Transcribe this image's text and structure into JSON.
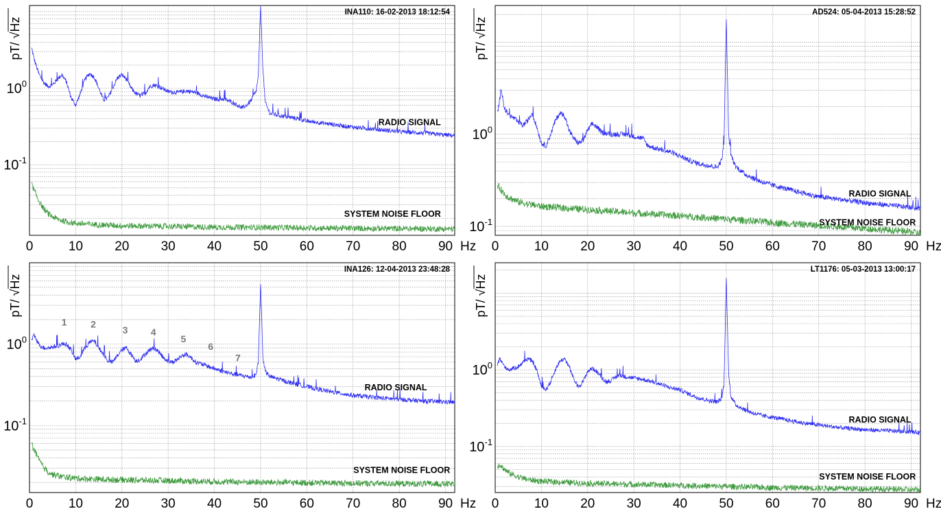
{
  "chart_data": [
    {
      "type": "line",
      "stamp": "INA110:   16-02-2013    18:12:54",
      "ylabel": "pT/ √Hz",
      "x_unit": "Hz",
      "xlim": [
        0,
        92
      ],
      "ylim": [
        0.012,
        12
      ],
      "y_scale": "log",
      "x_ticks": [
        "0",
        "10",
        "20",
        "30",
        "40",
        "50",
        "60",
        "70",
        "80",
        "90"
      ],
      "y_ticks": [
        {
          "base": "10",
          "exp": "0",
          "value": 1
        },
        {
          "base": "10",
          "exp": "-1",
          "value": 0.1
        }
      ],
      "grid": true,
      "annotations": [
        {
          "text": "RADIO SIGNAL",
          "x": 89,
          "y": 0.33
        },
        {
          "text": "SYSTEM  NOISE  FLOOR",
          "x": 89,
          "y": 0.021
        }
      ],
      "peak_labels": [],
      "series": [
        {
          "name": "RADIO SIGNAL",
          "color": "#2c2cf0",
          "x": [
            0.5,
            1,
            2,
            3,
            4,
            5,
            6,
            7,
            8,
            9,
            10,
            11,
            12,
            13,
            14,
            15,
            16,
            17,
            18,
            19,
            20,
            21,
            22,
            23,
            24,
            25,
            26,
            27,
            28,
            30,
            32,
            34,
            36,
            38,
            40,
            42,
            44,
            46,
            47,
            48,
            49,
            49.5,
            50,
            50.5,
            51,
            52,
            54,
            56,
            58,
            60,
            62,
            65,
            70,
            75,
            80,
            85,
            90,
            93
          ],
          "y": [
            3.3,
            2.4,
            1.55,
            1.2,
            1.05,
            1.1,
            1.3,
            1.5,
            1.2,
            0.75,
            0.6,
            0.85,
            1.3,
            1.55,
            1.4,
            1.0,
            0.7,
            0.75,
            1.0,
            1.35,
            1.5,
            1.3,
            1.0,
            0.85,
            0.8,
            0.85,
            1.05,
            1.1,
            1.05,
            0.9,
            0.88,
            0.92,
            0.88,
            0.78,
            0.72,
            0.72,
            0.65,
            0.55,
            0.6,
            0.7,
            0.9,
            1.4,
            12,
            1.8,
            0.65,
            0.47,
            0.44,
            0.42,
            0.4,
            0.37,
            0.36,
            0.34,
            0.31,
            0.29,
            0.27,
            0.26,
            0.245,
            0.24
          ]
        },
        {
          "name": "SYSTEM  NOISE  FLOOR",
          "color": "#3e9a3e",
          "x": [
            0.5,
            1,
            2,
            3,
            4,
            5,
            6,
            8,
            10,
            15,
            20,
            30,
            40,
            50,
            60,
            70,
            80,
            93
          ],
          "y": [
            0.055,
            0.046,
            0.034,
            0.027,
            0.023,
            0.021,
            0.0195,
            0.018,
            0.0172,
            0.0165,
            0.016,
            0.0157,
            0.0153,
            0.0152,
            0.015,
            0.0148,
            0.0147,
            0.0145
          ]
        }
      ]
    },
    {
      "type": "line",
      "stamp": "AD524:  05-04-2013    15:28:52",
      "ylabel": "pT/ √Hz",
      "x_unit": "Hz",
      "xlim": [
        0,
        92
      ],
      "ylim": [
        0.08,
        25
      ],
      "y_scale": "log",
      "x_ticks": [
        "0",
        "10",
        "20",
        "30",
        "40",
        "50",
        "60",
        "70",
        "80",
        "90"
      ],
      "y_ticks": [
        {
          "base": "10",
          "exp": "0",
          "value": 1
        },
        {
          "base": "10",
          "exp": "-1",
          "value": 0.1
        }
      ],
      "grid": true,
      "annotations": [
        {
          "text": "RADIO SIGNAL",
          "x": 90,
          "y": 0.21
        },
        {
          "text": "SYSTEM  NOISE  FLOOR",
          "x": 91,
          "y": 0.103
        }
      ],
      "peak_labels": [],
      "series": [
        {
          "name": "RADIO SIGNAL",
          "color": "#2c2cf0",
          "x": [
            0.5,
            1,
            1.3,
            2,
            3,
            4,
            5,
            6,
            7,
            8,
            9,
            10,
            11,
            12,
            13,
            14,
            15,
            16,
            17,
            18,
            19,
            20,
            21,
            22,
            23,
            25,
            28,
            30,
            32,
            33,
            35,
            38,
            40,
            42,
            44,
            46,
            48,
            49,
            49.5,
            50,
            50.5,
            51,
            52,
            54,
            56,
            58,
            60,
            65,
            70,
            75,
            80,
            85,
            90,
            93
          ],
          "y": [
            1.7,
            2.4,
            3.2,
            1.9,
            1.6,
            1.5,
            1.35,
            1.25,
            1.4,
            1.7,
            1.2,
            0.8,
            0.75,
            1.0,
            1.4,
            1.7,
            1.6,
            1.1,
            0.9,
            0.8,
            0.85,
            1.1,
            1.3,
            1.2,
            1.05,
            1.0,
            1.0,
            0.95,
            0.9,
            0.75,
            0.7,
            0.64,
            0.58,
            0.52,
            0.48,
            0.46,
            0.44,
            0.52,
            0.8,
            18,
            1.0,
            0.6,
            0.45,
            0.37,
            0.33,
            0.3,
            0.28,
            0.24,
            0.21,
            0.195,
            0.18,
            0.17,
            0.16,
            0.155
          ]
        },
        {
          "name": "SYSTEM  NOISE  FLOOR",
          "color": "#3e9a3e",
          "x": [
            0.5,
            1,
            2,
            3,
            5,
            7,
            10,
            15,
            20,
            30,
            40,
            50,
            60,
            70,
            80,
            90,
            93
          ],
          "y": [
            0.28,
            0.26,
            0.225,
            0.205,
            0.185,
            0.175,
            0.165,
            0.158,
            0.152,
            0.14,
            0.13,
            0.12,
            0.11,
            0.102,
            0.095,
            0.087,
            0.083
          ]
        }
      ]
    },
    {
      "type": "line",
      "stamp": "INA126:   12-04-2013    23:48:28",
      "ylabel": "pT/ √Hz",
      "x_unit": "Hz",
      "xlim": [
        0,
        92
      ],
      "ylim": [
        0.015,
        10
      ],
      "y_scale": "log",
      "x_ticks": [
        "0",
        "10",
        "20",
        "30",
        "40",
        "50",
        "60",
        "70",
        "80",
        "90"
      ],
      "y_ticks": [
        {
          "base": "10",
          "exp": "0",
          "value": 1
        },
        {
          "base": "10",
          "exp": "-1",
          "value": 0.1
        }
      ],
      "grid": true,
      "annotations": [
        {
          "text": "RADIO SIGNAL",
          "x": 86,
          "y": 0.27
        },
        {
          "text": "SYSTEM  NOISE  FLOOR",
          "x": 91,
          "y": 0.026
        }
      ],
      "peak_labels": [
        {
          "text": "1",
          "x": 7.5,
          "y": 1.7
        },
        {
          "text": "2",
          "x": 13.8,
          "y": 1.6
        },
        {
          "text": "3",
          "x": 20.7,
          "y": 1.35
        },
        {
          "text": "4",
          "x": 26.8,
          "y": 1.28
        },
        {
          "text": "5",
          "x": 33.3,
          "y": 1.05
        },
        {
          "text": "6",
          "x": 39.2,
          "y": 0.85
        },
        {
          "text": "7",
          "x": 45.1,
          "y": 0.62
        }
      ],
      "series": [
        {
          "name": "RADIO SIGNAL",
          "color": "#2c2cf0",
          "x": [
            0.5,
            1,
            2,
            3,
            4,
            5,
            6,
            7,
            8,
            9,
            10,
            11,
            12,
            13,
            14,
            15,
            16,
            17,
            18,
            19,
            20,
            21,
            22,
            23,
            24,
            25,
            26,
            27,
            28,
            29,
            30,
            31,
            32,
            33,
            34,
            35,
            36,
            38,
            40,
            42,
            44,
            46,
            48,
            49,
            49.5,
            50,
            50.5,
            51,
            52,
            54,
            56,
            58,
            60,
            65,
            70,
            75,
            80,
            85,
            90,
            93
          ],
          "y": [
            1.1,
            1.3,
            1.0,
            0.9,
            0.9,
            0.92,
            0.95,
            1.0,
            1.0,
            0.85,
            0.65,
            0.7,
            0.9,
            1.05,
            1.1,
            0.9,
            0.75,
            0.62,
            0.6,
            0.72,
            0.85,
            0.9,
            0.75,
            0.62,
            0.65,
            0.75,
            0.85,
            0.9,
            0.8,
            0.68,
            0.62,
            0.6,
            0.65,
            0.72,
            0.75,
            0.68,
            0.6,
            0.55,
            0.5,
            0.46,
            0.43,
            0.41,
            0.39,
            0.42,
            0.6,
            5.5,
            0.7,
            0.46,
            0.4,
            0.37,
            0.34,
            0.32,
            0.3,
            0.26,
            0.235,
            0.22,
            0.21,
            0.2,
            0.195,
            0.19
          ]
        },
        {
          "name": "SYSTEM  NOISE  FLOOR",
          "color": "#3e9a3e",
          "x": [
            0.5,
            1,
            2,
            3,
            4,
            5,
            7,
            10,
            15,
            20,
            30,
            40,
            50,
            60,
            70,
            80,
            93
          ],
          "y": [
            0.06,
            0.05,
            0.038,
            0.031,
            0.027,
            0.025,
            0.0235,
            0.0225,
            0.0218,
            0.0215,
            0.021,
            0.0205,
            0.02,
            0.0198,
            0.0195,
            0.0193,
            0.019
          ]
        }
      ]
    },
    {
      "type": "line",
      "stamp": "LT1176:   05-03-2013    13:00:17",
      "ylabel": "pT/ √Hz",
      "x_unit": "Hz",
      "xlim": [
        0,
        92
      ],
      "ylim": [
        0.025,
        25
      ],
      "y_scale": "log",
      "x_ticks": [
        "0",
        "10",
        "20",
        "30",
        "40",
        "50",
        "60",
        "70",
        "80",
        "90"
      ],
      "y_ticks": [
        {
          "base": "10",
          "exp": "0",
          "value": 1
        },
        {
          "base": "10",
          "exp": "-1",
          "value": 0.1
        }
      ],
      "grid": true,
      "annotations": [
        {
          "text": "RADIO SIGNAL",
          "x": 90,
          "y": 0.205
        },
        {
          "text": "SYSTEM  NOISE  FLOOR",
          "x": 91,
          "y": 0.037
        }
      ],
      "peak_labels": [],
      "series": [
        {
          "name": "RADIO SIGNAL",
          "color": "#2c2cf0",
          "x": [
            0.5,
            1,
            2,
            3,
            4,
            5,
            6,
            7,
            8,
            9,
            10,
            11,
            12,
            13,
            14,
            15,
            16,
            17,
            18,
            19,
            20,
            21,
            22,
            23,
            24,
            25,
            26,
            27,
            28,
            30,
            32,
            34,
            36,
            38,
            40,
            42,
            44,
            46,
            48,
            49,
            49.5,
            50,
            50.5,
            51,
            52,
            54,
            56,
            58,
            60,
            65,
            70,
            75,
            80,
            85,
            90,
            93
          ],
          "y": [
            1.2,
            1.4,
            1.1,
            1.0,
            1.05,
            1.1,
            1.25,
            1.4,
            1.3,
            1.0,
            0.6,
            0.55,
            0.7,
            1.0,
            1.3,
            1.4,
            1.1,
            0.75,
            0.6,
            0.7,
            0.95,
            1.05,
            0.95,
            0.8,
            0.7,
            0.72,
            0.8,
            0.85,
            0.82,
            0.78,
            0.75,
            0.7,
            0.64,
            0.58,
            0.55,
            0.48,
            0.43,
            0.4,
            0.38,
            0.42,
            0.65,
            16,
            0.9,
            0.45,
            0.35,
            0.3,
            0.27,
            0.25,
            0.24,
            0.21,
            0.19,
            0.175,
            0.165,
            0.16,
            0.155,
            0.15
          ]
        },
        {
          "name": "SYSTEM  NOISE  FLOOR",
          "color": "#3e9a3e",
          "x": [
            0.5,
            1,
            2,
            3,
            5,
            7,
            10,
            15,
            20,
            30,
            40,
            50,
            60,
            70,
            80,
            93
          ],
          "y": [
            0.055,
            0.058,
            0.05,
            0.045,
            0.04,
            0.037,
            0.035,
            0.034,
            0.033,
            0.032,
            0.031,
            0.03,
            0.029,
            0.0285,
            0.028,
            0.027
          ]
        }
      ]
    }
  ]
}
